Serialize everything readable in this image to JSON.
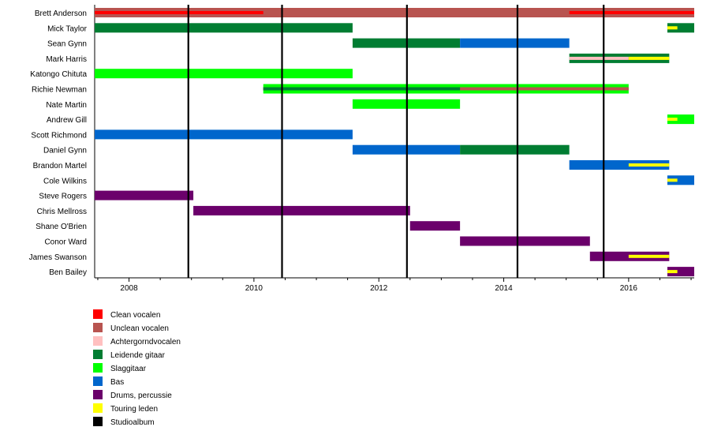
{
  "chart_data": {
    "type": "timeline",
    "title": "",
    "xlabel": "",
    "ylabel": "",
    "xlim": [
      2007.45,
      2017.05
    ],
    "x_ticks": [
      2008,
      2010,
      2012,
      2014,
      2016
    ],
    "x_tick_labels": [
      "2008",
      "2010",
      "2012",
      "2014",
      "2016"
    ],
    "legend_position": "bottom-left",
    "roles": [
      {
        "key": "clean",
        "label": "Clean vocalen",
        "color": "#ff0000"
      },
      {
        "key": "unclean",
        "label": "Unclean vocalen",
        "color": "#b85450"
      },
      {
        "key": "backing",
        "label": "Achtergorndvocalen",
        "color": "#ffc0c0"
      },
      {
        "key": "lead",
        "label": "Leidende gitaar",
        "color": "#007d32"
      },
      {
        "key": "rhythm",
        "label": "Slaggitaar",
        "color": "#00ff00"
      },
      {
        "key": "bass",
        "label": "Bas",
        "color": "#0066cc"
      },
      {
        "key": "drums",
        "label": "Drums, percussie",
        "color": "#6b006b"
      },
      {
        "key": "touring",
        "label": "Touring leden",
        "color": "#ffff00"
      },
      {
        "key": "album",
        "label": "Studioalbum",
        "color": "#000000"
      }
    ],
    "albums": [
      2008.95,
      2010.45,
      2012.45,
      2014.22,
      2015.6
    ],
    "members": [
      {
        "name": "Brett Anderson",
        "bars": [
          {
            "role": "unclean",
            "start": 2007.45,
            "end": 2017.05
          },
          {
            "role": "clean",
            "start": 2007.45,
            "end": 2010.15,
            "thin": true
          },
          {
            "role": "clean",
            "start": 2015.05,
            "end": 2017.05,
            "thin": true
          }
        ]
      },
      {
        "name": "Mick Taylor",
        "bars": [
          {
            "role": "lead",
            "start": 2007.45,
            "end": 2011.58
          },
          {
            "role": "lead",
            "start": 2016.62,
            "end": 2017.05
          },
          {
            "role": "touring",
            "start": 2016.62,
            "end": 2016.78,
            "thin": true
          }
        ]
      },
      {
        "name": "Sean Gynn",
        "bars": [
          {
            "role": "lead",
            "start": 2011.58,
            "end": 2013.3
          },
          {
            "role": "bass",
            "start": 2013.3,
            "end": 2015.05
          }
        ]
      },
      {
        "name": "Mark Harris",
        "bars": [
          {
            "role": "lead",
            "start": 2015.05,
            "end": 2016.65
          },
          {
            "role": "backing",
            "start": 2015.05,
            "end": 2016.0,
            "thin": true
          },
          {
            "role": "touring",
            "start": 2016.0,
            "end": 2016.65,
            "thin": true
          }
        ]
      },
      {
        "name": "Katongo Chituta",
        "bars": [
          {
            "role": "rhythm",
            "start": 2007.45,
            "end": 2011.58
          }
        ]
      },
      {
        "name": "Richie Newman",
        "bars": [
          {
            "role": "rhythm",
            "start": 2010.15,
            "end": 2016.0
          },
          {
            "role": "unclean",
            "start": 2010.15,
            "end": 2016.0,
            "thin": true
          },
          {
            "role": "lead",
            "start": 2010.15,
            "end": 2013.3,
            "thin": true
          }
        ]
      },
      {
        "name": "Nate Martin",
        "bars": [
          {
            "role": "rhythm",
            "start": 2011.58,
            "end": 2013.3
          }
        ]
      },
      {
        "name": "Andrew Gill",
        "bars": [
          {
            "role": "rhythm",
            "start": 2016.62,
            "end": 2017.05
          },
          {
            "role": "touring",
            "start": 2016.62,
            "end": 2016.78,
            "thin": true
          }
        ]
      },
      {
        "name": "Scott Richmond",
        "bars": [
          {
            "role": "bass",
            "start": 2007.45,
            "end": 2011.58
          }
        ]
      },
      {
        "name": "Daniel Gynn",
        "bars": [
          {
            "role": "bass",
            "start": 2011.58,
            "end": 2013.3
          },
          {
            "role": "lead",
            "start": 2013.3,
            "end": 2015.05
          }
        ]
      },
      {
        "name": "Brandon Martel",
        "bars": [
          {
            "role": "bass",
            "start": 2015.05,
            "end": 2016.65
          },
          {
            "role": "touring",
            "start": 2016.0,
            "end": 2016.65,
            "thin": true
          }
        ]
      },
      {
        "name": "Cole Wilkins",
        "bars": [
          {
            "role": "bass",
            "start": 2016.62,
            "end": 2017.05
          },
          {
            "role": "touring",
            "start": 2016.62,
            "end": 2016.78,
            "thin": true
          }
        ]
      },
      {
        "name": "Steve Rogers",
        "bars": [
          {
            "role": "drums",
            "start": 2007.45,
            "end": 2009.03
          }
        ]
      },
      {
        "name": "Chris Mellross",
        "bars": [
          {
            "role": "drums",
            "start": 2009.03,
            "end": 2012.5
          }
        ]
      },
      {
        "name": "Shane O'Brien",
        "bars": [
          {
            "role": "drums",
            "start": 2012.5,
            "end": 2013.3
          }
        ]
      },
      {
        "name": "Conor Ward",
        "bars": [
          {
            "role": "drums",
            "start": 2013.3,
            "end": 2015.38
          }
        ]
      },
      {
        "name": "James Swanson",
        "bars": [
          {
            "role": "drums",
            "start": 2015.38,
            "end": 2016.65
          },
          {
            "role": "touring",
            "start": 2016.0,
            "end": 2016.65,
            "thin": true
          }
        ]
      },
      {
        "name": "Ben Bailey",
        "bars": [
          {
            "role": "drums",
            "start": 2016.62,
            "end": 2017.05
          },
          {
            "role": "touring",
            "start": 2016.62,
            "end": 2016.78,
            "thin": true
          }
        ]
      }
    ]
  }
}
